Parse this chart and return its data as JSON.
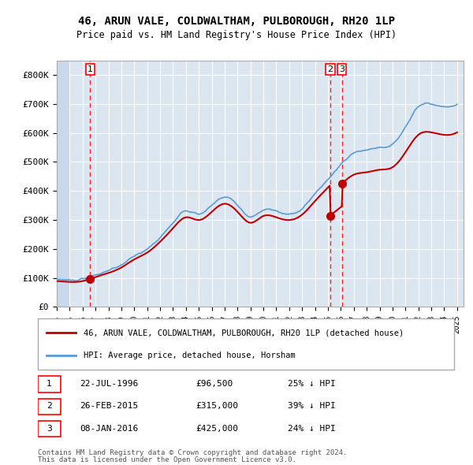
{
  "title": "46, ARUN VALE, COLDWALTHAM, PULBOROUGH, RH20 1LP",
  "subtitle": "Price paid vs. HM Land Registry's House Price Index (HPI)",
  "hpi_color": "#5b9bd5",
  "price_color": "#c00000",
  "dashed_color": "#ff0000",
  "background_plot": "#dce6f1",
  "background_hatch": "#c9d9ed",
  "ylim": [
    0,
    850000
  ],
  "yticks": [
    0,
    100000,
    200000,
    300000,
    400000,
    500000,
    600000,
    700000,
    800000
  ],
  "ytick_labels": [
    "£0",
    "£100K",
    "£200K",
    "£300K",
    "£400K",
    "£500K",
    "£600K",
    "£700K",
    "£800K"
  ],
  "sale_dates": [
    "1996-07-22",
    "2015-02-26",
    "2016-01-08"
  ],
  "sale_prices": [
    96500,
    315000,
    425000
  ],
  "sale_labels": [
    "1",
    "2",
    "3"
  ],
  "legend_line1": "46, ARUN VALE, COLDWALTHAM, PULBOROUGH, RH20 1LP (detached house)",
  "legend_line2": "HPI: Average price, detached house, Horsham",
  "table_rows": [
    [
      "1",
      "22-JUL-1996",
      "£96,500",
      "25% ↓ HPI"
    ],
    [
      "2",
      "26-FEB-2015",
      "£315,000",
      "39% ↓ HPI"
    ],
    [
      "3",
      "08-JAN-2016",
      "£425,000",
      "24% ↓ HPI"
    ]
  ],
  "footnote1": "Contains HM Land Registry data © Crown copyright and database right 2024.",
  "footnote2": "This data is licensed under the Open Government Licence v3.0.",
  "xstart": 1994.0,
  "xend": 2025.5
}
